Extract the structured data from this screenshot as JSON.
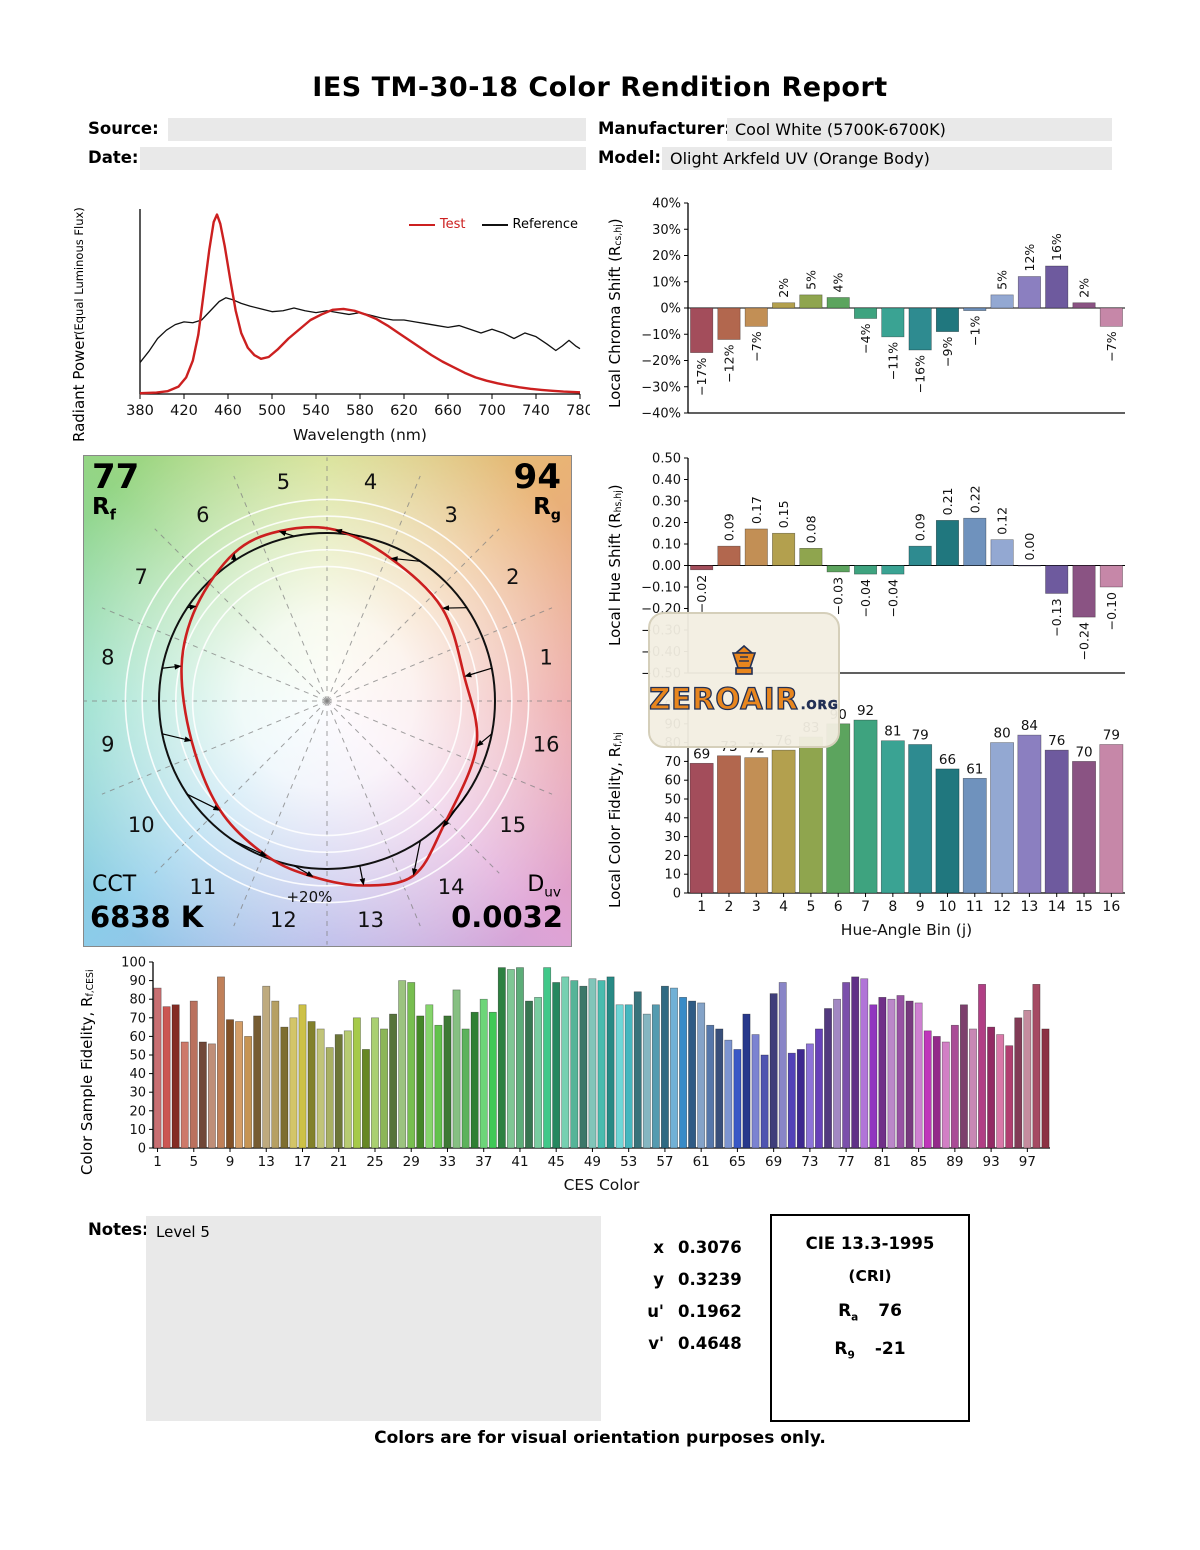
{
  "page": {
    "title": "IES TM-30-18 Color Rendition Report",
    "footer": "Colors are for visual orientation purposes only."
  },
  "header": {
    "source_label": "Source:",
    "source_value": "",
    "date_label": "Date:",
    "date_value": "",
    "manufacturer_label": "Manufacturer:",
    "manufacturer_value": "Cool White (5700K-6700K)",
    "model_label": "Model:",
    "model_value": "Olight Arkfeld UV (Orange Body)"
  },
  "notes": {
    "label": "Notes:",
    "value": "Level 5"
  },
  "chromaticity": {
    "rows": [
      {
        "label": "x",
        "value": "0.3076"
      },
      {
        "label": "y",
        "value": "0.3239"
      },
      {
        "label": "u'",
        "value": "0.1962"
      },
      {
        "label": "v'",
        "value": "0.4648"
      }
    ]
  },
  "cri": {
    "title": "CIE 13.3-1995",
    "subtitle": "(CRI)",
    "ra_main": "R",
    "ra_sub": "a",
    "ra_value": "76",
    "r9_main": "R",
    "r9_sub": "9",
    "r9_value": "-21"
  },
  "cvg": {
    "rf_value": "77",
    "rf_main": "R",
    "rf_sub": "f",
    "rg_value": "94",
    "rg_main": "R",
    "rg_sub": "g",
    "cct_label": "CCT",
    "cct_value": "6838 K",
    "duv_main": "D",
    "duv_sub": "uv",
    "duv_value": "0.0032",
    "plus_label": "+20%",
    "bin_labels": [
      "1",
      "2",
      "3",
      "4",
      "5",
      "6",
      "7",
      "8",
      "9",
      "10",
      "11",
      "12",
      "13",
      "14",
      "15",
      "16"
    ]
  },
  "watermark": {
    "text": "ZEROAIR",
    "suffix": ".ORG"
  },
  "colors": {
    "test": "#cc2020",
    "reference": "#111111",
    "field_bg": "#e9e9e9",
    "hue_bins": [
      "#a34d5b",
      "#b2674e",
      "#c28f55",
      "#b3a04e",
      "#8fa54e",
      "#5ca45e",
      "#3ea37f",
      "#3aa393",
      "#2e8b90",
      "#20777e",
      "#6f92bd",
      "#93a8d2",
      "#8b7fc0",
      "#6e5a9e",
      "#8a5383",
      "#c687a8"
    ]
  },
  "chart_data": [
    {
      "id": "spd",
      "type": "line",
      "xlabel": "Wavelength (nm)",
      "ylabel_line1": "Radiant Power",
      "ylabel_line2": "(Equal Luminous Flux)",
      "xlim": [
        380,
        780
      ],
      "ylim": [
        0,
        1
      ],
      "x_ticks": [
        380,
        420,
        460,
        500,
        540,
        580,
        620,
        660,
        700,
        740,
        780
      ],
      "series": [
        {
          "name": "Test",
          "color": "#cc2020",
          "points": [
            [
              380,
              0.004
            ],
            [
              395,
              0.008
            ],
            [
              405,
              0.015
            ],
            [
              415,
              0.04
            ],
            [
              422,
              0.09
            ],
            [
              428,
              0.18
            ],
            [
              433,
              0.32
            ],
            [
              438,
              0.55
            ],
            [
              443,
              0.78
            ],
            [
              447,
              0.93
            ],
            [
              450,
              0.97
            ],
            [
              453,
              0.92
            ],
            [
              457,
              0.8
            ],
            [
              462,
              0.62
            ],
            [
              467,
              0.45
            ],
            [
              472,
              0.33
            ],
            [
              478,
              0.25
            ],
            [
              484,
              0.21
            ],
            [
              490,
              0.19
            ],
            [
              497,
              0.2
            ],
            [
              505,
              0.24
            ],
            [
              515,
              0.3
            ],
            [
              525,
              0.35
            ],
            [
              535,
              0.4
            ],
            [
              545,
              0.43
            ],
            [
              555,
              0.455
            ],
            [
              565,
              0.46
            ],
            [
              575,
              0.45
            ],
            [
              585,
              0.43
            ],
            [
              595,
              0.405
            ],
            [
              605,
              0.37
            ],
            [
              615,
              0.33
            ],
            [
              625,
              0.29
            ],
            [
              635,
              0.25
            ],
            [
              645,
              0.21
            ],
            [
              655,
              0.175
            ],
            [
              665,
              0.145
            ],
            [
              675,
              0.115
            ],
            [
              685,
              0.09
            ],
            [
              695,
              0.072
            ],
            [
              705,
              0.058
            ],
            [
              715,
              0.046
            ],
            [
              725,
              0.036
            ],
            [
              735,
              0.028
            ],
            [
              745,
              0.022
            ],
            [
              755,
              0.017
            ],
            [
              765,
              0.013
            ],
            [
              780,
              0.009
            ]
          ]
        },
        {
          "name": "Reference",
          "color": "#111111",
          "points": [
            [
              380,
              0.17
            ],
            [
              388,
              0.23
            ],
            [
              396,
              0.3
            ],
            [
              404,
              0.345
            ],
            [
              412,
              0.375
            ],
            [
              420,
              0.39
            ],
            [
              428,
              0.385
            ],
            [
              436,
              0.4
            ],
            [
              444,
              0.45
            ],
            [
              452,
              0.5
            ],
            [
              458,
              0.52
            ],
            [
              464,
              0.51
            ],
            [
              472,
              0.49
            ],
            [
              480,
              0.475
            ],
            [
              490,
              0.46
            ],
            [
              500,
              0.445
            ],
            [
              510,
              0.45
            ],
            [
              520,
              0.465
            ],
            [
              530,
              0.45
            ],
            [
              540,
              0.44
            ],
            [
              550,
              0.45
            ],
            [
              560,
              0.44
            ],
            [
              570,
              0.43
            ],
            [
              580,
              0.44
            ],
            [
              590,
              0.425
            ],
            [
              600,
              0.41
            ],
            [
              610,
              0.4
            ],
            [
              620,
              0.4
            ],
            [
              630,
              0.39
            ],
            [
              640,
              0.38
            ],
            [
              650,
              0.37
            ],
            [
              660,
              0.36
            ],
            [
              670,
              0.37
            ],
            [
              680,
              0.35
            ],
            [
              690,
              0.33
            ],
            [
              700,
              0.35
            ],
            [
              710,
              0.33
            ],
            [
              720,
              0.3
            ],
            [
              730,
              0.33
            ],
            [
              740,
              0.31
            ],
            [
              750,
              0.27
            ],
            [
              758,
              0.235
            ],
            [
              764,
              0.26
            ],
            [
              770,
              0.29
            ],
            [
              776,
              0.26
            ],
            [
              780,
              0.245
            ]
          ]
        }
      ]
    },
    {
      "id": "chroma_shift",
      "type": "bar",
      "ylabel_pre": "Local Chroma Shift (R",
      "ylabel_sub": "cs,hj",
      "ylabel_post": ")",
      "ylim": [
        -40,
        40
      ],
      "ytick_values": [
        40,
        30,
        20,
        10,
        0,
        -10,
        -20,
        -30,
        -40
      ],
      "ytick_labels": [
        "40%",
        "30%",
        "20%",
        "10%",
        "0%",
        "−10%",
        "−20%",
        "−30%",
        "−40%"
      ],
      "categories": [
        1,
        2,
        3,
        4,
        5,
        6,
        7,
        8,
        9,
        10,
        11,
        12,
        13,
        14,
        15,
        16
      ],
      "values": [
        -17,
        -12,
        -7,
        2,
        5,
        4,
        -4,
        -11,
        -16,
        -9,
        -1,
        5,
        12,
        16,
        2,
        -7
      ],
      "value_labels": [
        "−17%",
        "−12%",
        "−7%",
        "2%",
        "5%",
        "4%",
        "−4%",
        "−11%",
        "−16%",
        "−9%",
        "−1%",
        "5%",
        "12%",
        "16%",
        "2%",
        "−7%"
      ]
    },
    {
      "id": "hue_shift",
      "type": "bar",
      "ylabel_pre": "Local Hue Shift (R",
      "ylabel_sub": "hs,hj",
      "ylabel_post": ")",
      "ylim": [
        -0.5,
        0.5
      ],
      "ytick_values": [
        0.5,
        0.4,
        0.3,
        0.2,
        0.1,
        0,
        -0.1,
        -0.2,
        -0.3,
        -0.4,
        -0.5
      ],
      "ytick_labels": [
        "0.50",
        "0.40",
        "0.30",
        "0.20",
        "0.10",
        "0.00",
        "−0.10",
        "−0.20",
        "−0.30",
        "−0.40",
        "−0.50"
      ],
      "categories": [
        1,
        2,
        3,
        4,
        5,
        6,
        7,
        8,
        9,
        10,
        11,
        12,
        13,
        14,
        15,
        16
      ],
      "values": [
        -0.02,
        0.09,
        0.17,
        0.15,
        0.08,
        -0.03,
        -0.04,
        -0.04,
        0.09,
        0.21,
        0.22,
        0.12,
        0.0,
        -0.13,
        -0.24,
        -0.1
      ],
      "value_labels": [
        "−0.02",
        "0.09",
        "0.17",
        "0.15",
        "0.08",
        "−0.03",
        "−0.04",
        "−0.04",
        "0.09",
        "0.21",
        "0.22",
        "0.12",
        "0.00",
        "−0.13",
        "−0.24",
        "−0.10"
      ]
    },
    {
      "id": "local_fidelity",
      "type": "bar",
      "xlabel": "Hue-Angle Bin (j)",
      "ylabel_pre": "Local Color Fidelity, R",
      "ylabel_sub": "f,hj",
      "ylabel_post": "",
      "ylim": [
        0,
        100
      ],
      "ytick_values": [
        0,
        10,
        20,
        30,
        40,
        50,
        60,
        70,
        80,
        90,
        100
      ],
      "categories": [
        1,
        2,
        3,
        4,
        5,
        6,
        7,
        8,
        9,
        10,
        11,
        12,
        13,
        14,
        15,
        16
      ],
      "values": [
        69,
        73,
        72,
        76,
        83,
        90,
        92,
        81,
        79,
        66,
        61,
        80,
        84,
        76,
        70,
        79
      ],
      "value_labels": [
        "69",
        "73",
        "72",
        "76",
        "83",
        "90",
        "92",
        "81",
        "79",
        "66",
        "61",
        "80",
        "84",
        "76",
        "70",
        "79"
      ]
    },
    {
      "id": "ces_fidelity",
      "type": "bar",
      "xlabel": "CES Color",
      "ylabel_pre": "Color Sample Fidelity, R",
      "ylabel_sub": "f,CESi",
      "ylabel_post": "",
      "ylim": [
        0,
        100
      ],
      "ytick_values": [
        0,
        10,
        20,
        30,
        40,
        50,
        60,
        70,
        80,
        90,
        100
      ],
      "xtick_values": [
        1,
        5,
        9,
        13,
        17,
        21,
        25,
        29,
        33,
        37,
        41,
        45,
        49,
        53,
        57,
        61,
        65,
        69,
        73,
        77,
        81,
        85,
        89,
        93,
        97
      ],
      "values": [
        86,
        76,
        77,
        57,
        79,
        57,
        56,
        92,
        69,
        68,
        60,
        71,
        87,
        79,
        65,
        70,
        77,
        68,
        64,
        54,
        61,
        63,
        70,
        53,
        70,
        64,
        72,
        90,
        89,
        71,
        77,
        66,
        71,
        85,
        64,
        73,
        80,
        73,
        97,
        96,
        97,
        79,
        81,
        97,
        89,
        92,
        90,
        87,
        91,
        90,
        92,
        77,
        77,
        84,
        72,
        77,
        87,
        86,
        81,
        79,
        78,
        66,
        64,
        58,
        53,
        72,
        61,
        50,
        83,
        89,
        51,
        53,
        56,
        64,
        75,
        80,
        89,
        92,
        91,
        77,
        81,
        80,
        82,
        79,
        78,
        63,
        60,
        57,
        66,
        77,
        64,
        88,
        65,
        61,
        55,
        70,
        74,
        88,
        64
      ]
    }
  ]
}
